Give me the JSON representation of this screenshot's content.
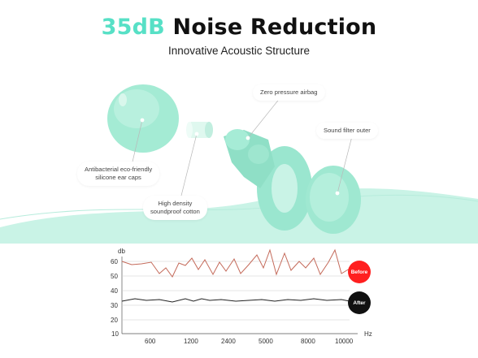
{
  "headline": {
    "accent": "35dB",
    "rest": "Noise Reduction"
  },
  "subheadline": "Innovative Acoustic Structure",
  "callouts": {
    "airbag": "Zero pressure airbag",
    "filter_outer": "Sound filter outer",
    "ear_caps_line1": "Antibacterial eco-friendly",
    "ear_caps_line2": "silicone ear caps",
    "cotton_line1": "High density",
    "cotton_line2": "soundproof cotton"
  },
  "colors": {
    "accent": "#57e0c6",
    "product": "#9ae6cf",
    "background_wave": "#c9f3e6",
    "before": "#ff1f1f",
    "after": "#111111"
  },
  "graph": {
    "unit_y": "db",
    "unit_x": "Hz",
    "y_ticks": [
      "60",
      "50",
      "40",
      "30",
      "20",
      "10"
    ],
    "x_ticks": [
      "600",
      "1200",
      "2400",
      "5000",
      "8000",
      "10000"
    ],
    "before_label": "Before",
    "after_label": "After"
  }
}
